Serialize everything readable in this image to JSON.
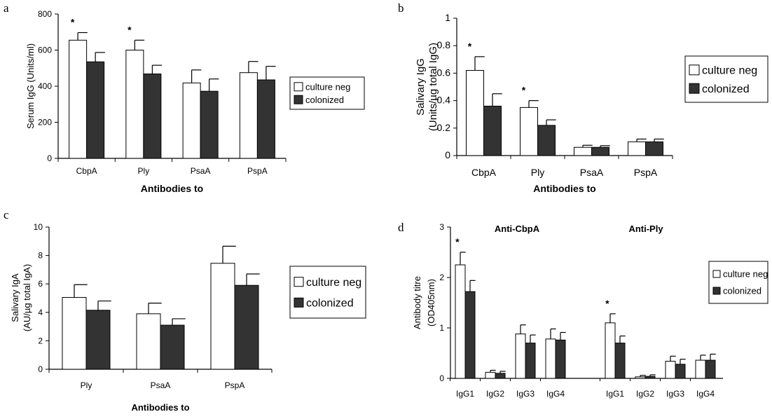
{
  "colors": {
    "culture_neg": "#ffffff",
    "colonized": "#333333",
    "axis": "#000000"
  },
  "chart_data": [
    {
      "panel": "a",
      "type": "bar",
      "ylabel": "Serum IgG (Units/ml)",
      "xlabel": "Antibodies to",
      "categories": [
        "CbpA",
        "Ply",
        "PsaA",
        "PspA"
      ],
      "ylim": [
        0,
        800
      ],
      "yticks": [
        0,
        200,
        400,
        600,
        800
      ],
      "series": [
        {
          "name": "culture neg",
          "values": [
            655,
            600,
            418,
            475
          ],
          "errors": [
            42,
            55,
            72,
            62
          ]
        },
        {
          "name": "colonized",
          "values": [
            535,
            468,
            372,
            435
          ],
          "errors": [
            52,
            48,
            68,
            75
          ]
        }
      ],
      "annotations": [
        {
          "category": "CbpA",
          "text": "*"
        },
        {
          "category": "Ply",
          "text": "*"
        }
      ],
      "legend": "right"
    },
    {
      "panel": "b",
      "type": "bar",
      "ylabel": [
        "Salivary IgG",
        "(Units/µg total IgG)"
      ],
      "xlabel": "Antibodies to",
      "categories": [
        "CbpA",
        "Ply",
        "PsaA",
        "PspA"
      ],
      "ylim": [
        0,
        1
      ],
      "yticks": [
        "0",
        "0.2",
        "0.4",
        "0.6",
        "0.8",
        "1"
      ],
      "series": [
        {
          "name": "culture neg",
          "values": [
            0.62,
            0.35,
            0.06,
            0.1
          ],
          "errors": [
            0.1,
            0.05,
            0.015,
            0.02
          ]
        },
        {
          "name": "colonized",
          "values": [
            0.36,
            0.22,
            0.06,
            0.1
          ],
          "errors": [
            0.09,
            0.04,
            0.012,
            0.02
          ]
        }
      ],
      "annotations": [
        {
          "category": "CbpA",
          "text": "*"
        },
        {
          "category": "Ply",
          "text": "*"
        }
      ],
      "legend": "right"
    },
    {
      "panel": "c",
      "type": "bar",
      "ylabel": [
        "Salivary IgA",
        "(AU/µg total IgA)"
      ],
      "xlabel": "Antibodies to",
      "categories": [
        "Ply",
        "PsaA",
        "PspA"
      ],
      "ylim": [
        0,
        10
      ],
      "yticks": [
        0,
        2,
        4,
        6,
        8,
        10
      ],
      "series": [
        {
          "name": "culture neg",
          "values": [
            5.05,
            3.9,
            7.45
          ],
          "errors": [
            0.9,
            0.75,
            1.2
          ]
        },
        {
          "name": "colonized",
          "values": [
            4.15,
            3.1,
            5.9
          ],
          "errors": [
            0.65,
            0.45,
            0.8
          ]
        }
      ],
      "annotations": [],
      "legend": "right"
    },
    {
      "panel": "d",
      "type": "bar",
      "ylabel": [
        "Antibody titre",
        "(OD405nm)"
      ],
      "xlabel": "",
      "group_titles": [
        "Anti-CbpA",
        "Anti-Ply"
      ],
      "categories": [
        "IgG1",
        "IgG2",
        "IgG3",
        "IgG4",
        "IgG1",
        "IgG2",
        "IgG3",
        "IgG4"
      ],
      "ylim": [
        0,
        3
      ],
      "yticks": [
        0,
        1,
        2,
        3
      ],
      "series": [
        {
          "name": "culture neg",
          "values": [
            2.25,
            0.12,
            0.88,
            0.78,
            1.1,
            0.03,
            0.34,
            0.36
          ],
          "errors": [
            0.25,
            0.04,
            0.18,
            0.2,
            0.18,
            0.03,
            0.1,
            0.1
          ]
        },
        {
          "name": "colonized",
          "values": [
            1.72,
            0.1,
            0.7,
            0.76,
            0.7,
            0.04,
            0.28,
            0.36
          ],
          "errors": [
            0.22,
            0.04,
            0.16,
            0.15,
            0.14,
            0.03,
            0.1,
            0.12
          ]
        }
      ],
      "annotations": [
        {
          "index": 0,
          "text": "*"
        },
        {
          "index": 4,
          "text": "*"
        }
      ],
      "legend": "right"
    }
  ]
}
